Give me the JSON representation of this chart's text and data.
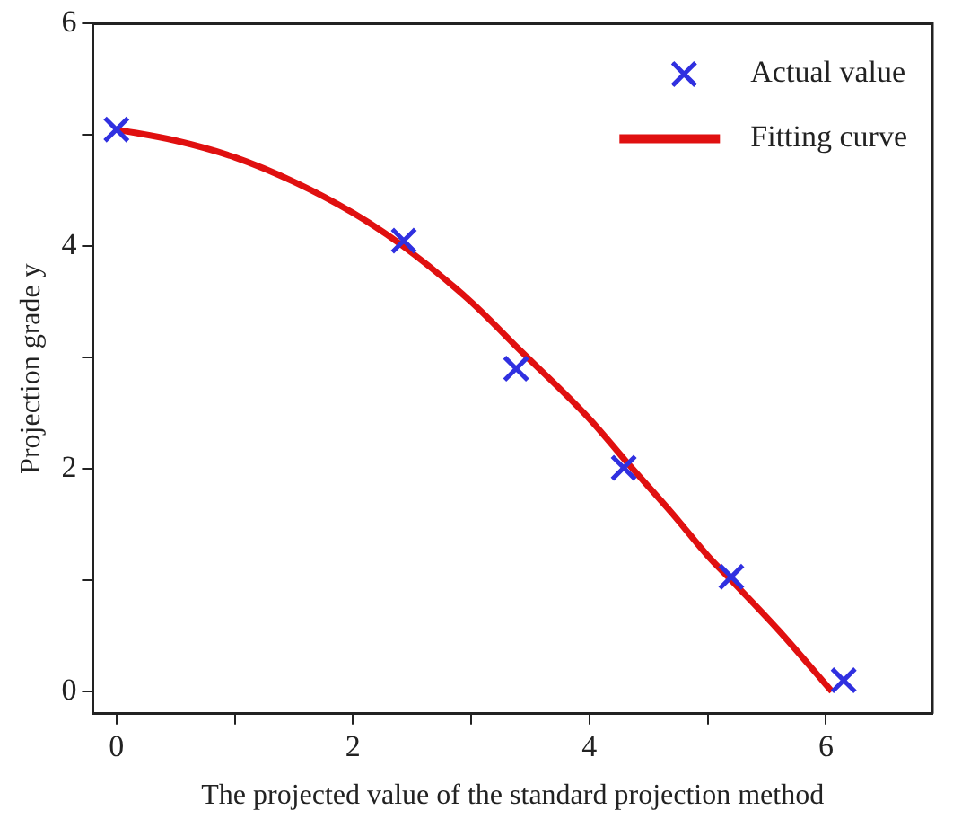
{
  "chart_data": {
    "type": "scatter",
    "xlabel": "The projected value of the standard projection method",
    "ylabel": "Projection grade y",
    "xlim": [
      -0.2,
      6.9
    ],
    "ylim": [
      -0.2,
      6
    ],
    "xticks": [
      0,
      {
        "value": 1,
        "label": null
      },
      2,
      {
        "value": 3,
        "label": null
      },
      4,
      {
        "value": 5,
        "label": null
      },
      6
    ],
    "yticks": [
      0,
      {
        "value": 1,
        "label": null
      },
      2,
      {
        "value": 3,
        "label": null
      },
      4,
      {
        "value": 5,
        "label": null
      },
      6
    ],
    "grid": false,
    "legend": "top right",
    "marker": "cross",
    "series": [
      {
        "name": "Actual value",
        "color": "#3030e0",
        "x": [
          0,
          2.43,
          3.38,
          4.29,
          5.2,
          6.15
        ],
        "values": [
          5.05,
          4.05,
          2.9,
          2.01,
          1.03,
          0.1
        ]
      },
      {
        "name": "Fitting curve",
        "type": "line",
        "color": "#e01010",
        "marker": "none",
        "x": [
          0,
          0.5,
          1,
          1.5,
          2,
          2.4,
          3,
          3.4,
          4,
          4.3,
          4.7,
          5,
          5.2,
          5.6,
          6.05
        ],
        "values": [
          5.05,
          4.95,
          4.8,
          4.58,
          4.3,
          4.02,
          3.5,
          3.08,
          2.45,
          2.08,
          1.6,
          1.22,
          1.0,
          0.55,
          0
        ]
      }
    ]
  }
}
